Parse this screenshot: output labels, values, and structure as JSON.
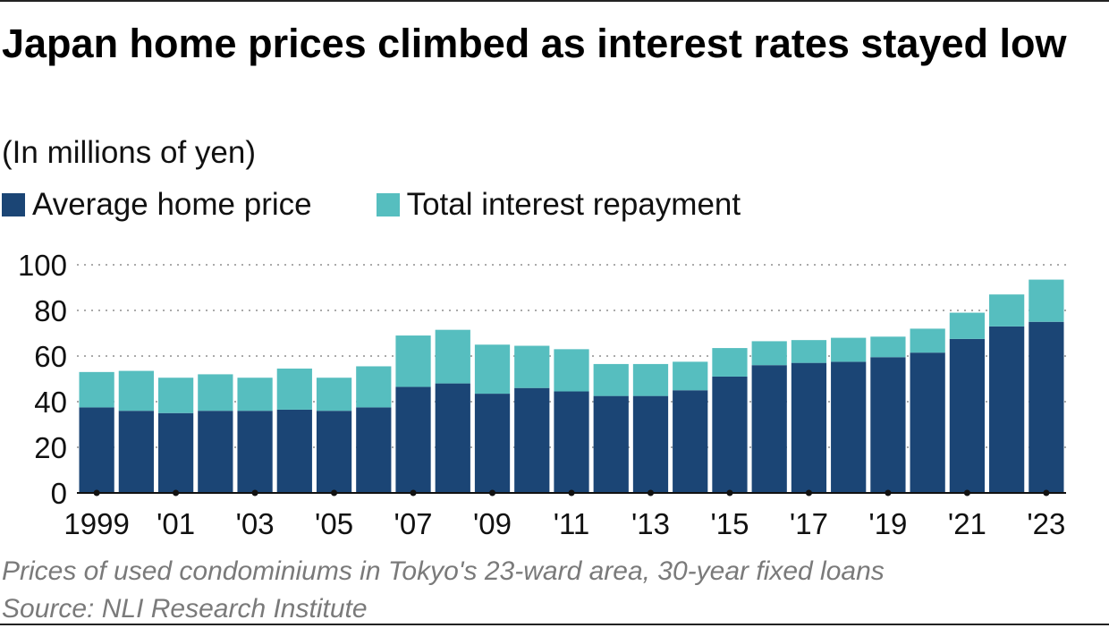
{
  "title": "Japan home prices climbed as interest rates stayed low",
  "subtitle": "(In millions of yen)",
  "colors": {
    "home_price": "#1b4575",
    "interest": "#56bebf",
    "grid": "#aaaaaa"
  },
  "chart_data": {
    "type": "bar",
    "stacked": true,
    "title": "Japan home prices climbed as interest rates stayed low",
    "ylabel": "(In millions of yen)",
    "xlabel": "",
    "ylim": [
      0,
      100
    ],
    "yticks": [
      "0",
      "20",
      "40",
      "60",
      "80",
      "100"
    ],
    "x": [
      1999,
      2000,
      2001,
      2002,
      2003,
      2004,
      2005,
      2006,
      2007,
      2008,
      2009,
      2010,
      2011,
      2012,
      2013,
      2014,
      2015,
      2016,
      2017,
      2018,
      2019,
      2020,
      2021,
      2022,
      2023
    ],
    "xtick_labels": [
      "1999",
      "'01",
      "'03",
      "'05",
      "'07",
      "'09",
      "'11",
      "'13",
      "'15",
      "'17",
      "'19",
      "'21",
      "'23"
    ],
    "series": [
      {
        "name": "Average home price",
        "values": [
          37.5,
          36,
          35,
          36,
          36,
          36.5,
          36,
          37.5,
          46.5,
          48,
          43.5,
          46,
          44.5,
          42.5,
          42.5,
          45,
          51,
          56,
          57,
          57.5,
          59.5,
          61.5,
          67.5,
          73,
          75
        ]
      },
      {
        "name": "Total interest repayment",
        "values": [
          15.5,
          17.5,
          15.5,
          16,
          14.5,
          18,
          14.5,
          18,
          22.5,
          23.5,
          21.5,
          18.5,
          18.5,
          14,
          14,
          12.5,
          12.5,
          10.5,
          10,
          10.5,
          9,
          10.5,
          11.5,
          14,
          18.5
        ]
      }
    ],
    "legend": [
      "Average home price",
      "Total interest repayment"
    ],
    "legend_position": "top-left",
    "grid": true
  },
  "footnote": {
    "note": "Prices of used condominiums in Tokyo's 23-ward area, 30-year fixed loans",
    "source": "Source: NLI Research Institute"
  }
}
